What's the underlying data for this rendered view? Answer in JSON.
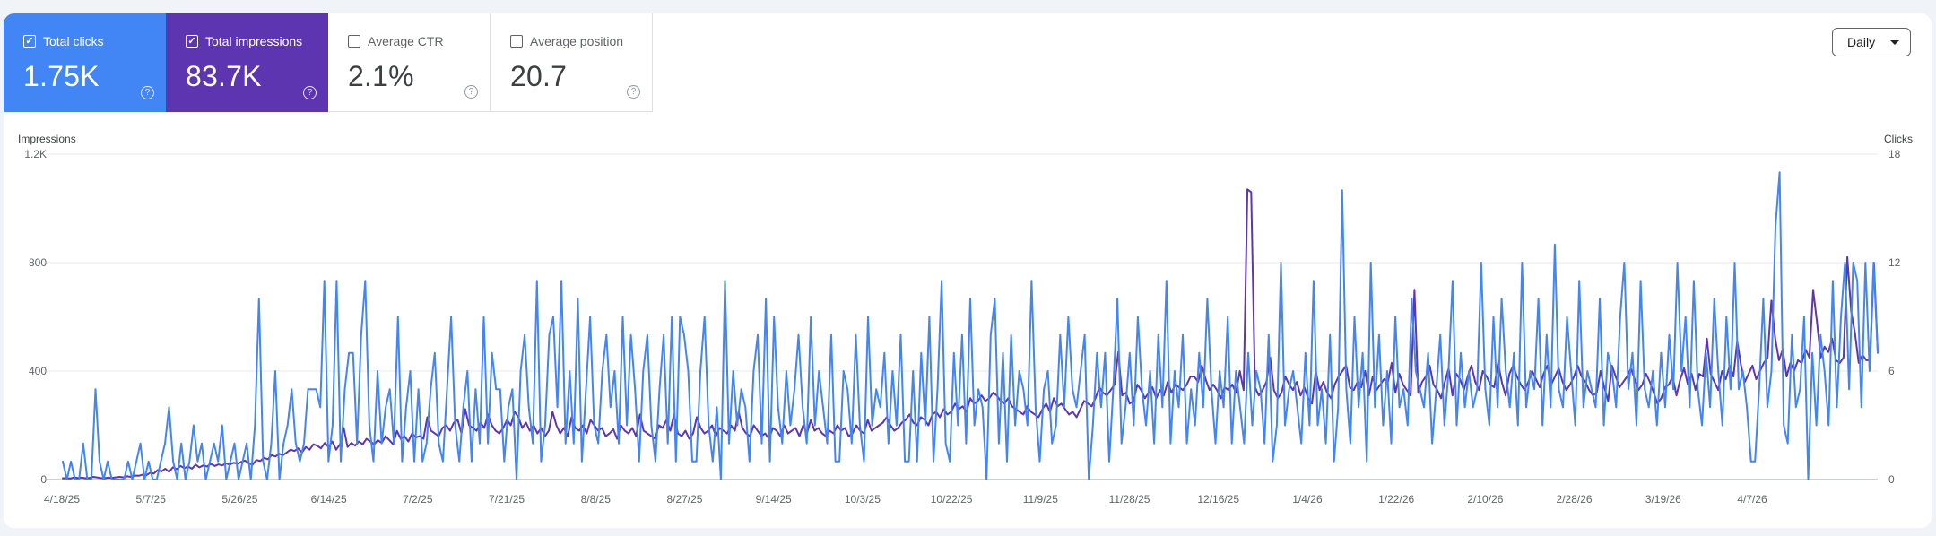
{
  "metrics": [
    {
      "label": "Total clicks",
      "value": "1.75K",
      "checked": true,
      "color": "#4285f4"
    },
    {
      "label": "Total impressions",
      "value": "83.7K",
      "checked": true,
      "color": "#5e35b1"
    },
    {
      "label": "Average CTR",
      "value": "2.1%",
      "checked": false
    },
    {
      "label": "Average position",
      "value": "20.7",
      "checked": false
    }
  ],
  "granularity": {
    "label": "Daily"
  },
  "chart_data": {
    "type": "line",
    "left_axis": {
      "title": "Impressions",
      "ticks": [
        "0",
        "400",
        "800",
        "1.2K"
      ],
      "ylim": [
        0,
        1200
      ]
    },
    "right_axis": {
      "title": "Clicks",
      "ticks": [
        "0",
        "6",
        "12",
        "18"
      ],
      "ylim": [
        0,
        18
      ]
    },
    "x_ticks": [
      "4/18/25",
      "5/7/25",
      "5/26/25",
      "6/14/25",
      "7/2/25",
      "7/21/25",
      "8/8/25",
      "8/27/25",
      "9/14/25",
      "10/3/25",
      "10/22/25",
      "11/9/25",
      "11/28/25",
      "12/16/25",
      "1/4/26",
      "1/22/26",
      "2/10/26",
      "2/28/26",
      "3/19/26",
      "4/7/26"
    ],
    "grid": true,
    "series": [
      {
        "name": "Clicks",
        "axis": "right",
        "color": "#4285f4",
        "values": [
          1,
          0,
          1,
          0,
          0,
          2,
          0,
          0,
          5,
          1,
          0,
          1,
          0,
          0,
          0,
          0,
          1,
          0,
          1,
          2,
          0,
          1,
          0,
          0,
          1,
          2,
          4,
          1,
          0,
          2,
          0,
          1,
          3,
          1,
          2,
          0,
          1,
          2,
          1,
          3,
          0,
          1,
          2,
          0,
          1,
          2,
          0,
          3,
          10,
          1,
          0,
          2,
          6,
          0,
          2,
          3,
          5,
          2,
          1,
          2,
          5,
          5,
          5,
          4,
          11,
          1,
          3,
          11,
          1,
          5,
          7,
          7,
          2,
          8,
          11,
          3,
          1,
          6,
          2,
          4,
          5,
          2,
          9,
          1,
          4,
          6,
          1,
          5,
          1,
          2,
          5,
          7,
          2,
          1,
          5,
          9,
          3,
          1,
          4,
          6,
          1,
          5,
          2,
          9,
          2,
          7,
          5,
          5,
          1,
          4,
          5,
          0,
          6,
          8,
          4,
          2,
          11,
          1,
          3,
          8,
          9,
          4,
          11,
          2,
          6,
          2,
          10,
          1,
          5,
          9,
          3,
          2,
          6,
          8,
          4,
          6,
          2,
          9,
          3,
          8,
          5,
          1,
          6,
          8,
          3,
          1,
          5,
          8,
          2,
          9,
          1,
          9,
          8,
          6,
          1,
          1,
          6,
          9,
          3,
          1,
          4,
          0,
          11,
          2,
          6,
          3,
          5,
          4,
          1,
          6,
          8,
          2,
          10,
          1,
          9,
          4,
          2,
          6,
          3,
          5,
          8,
          4,
          2,
          9,
          3,
          6,
          4,
          2,
          8,
          1,
          1,
          6,
          5,
          2,
          8,
          3,
          1,
          9,
          3,
          5,
          4,
          7,
          2,
          6,
          3,
          8,
          1,
          1,
          6,
          1,
          7,
          3,
          9,
          1,
          5,
          11,
          2,
          1,
          7,
          3,
          8,
          2,
          10,
          3,
          5,
          4,
          0,
          8,
          10,
          2,
          7,
          1,
          8,
          3,
          6,
          5,
          3,
          11,
          4,
          1,
          5,
          6,
          2,
          3,
          8,
          4,
          9,
          5,
          4,
          6,
          8,
          0,
          3,
          7,
          4,
          7,
          1,
          5,
          10,
          2,
          4,
          7,
          3,
          9,
          5,
          3,
          6,
          2,
          8,
          4,
          11,
          2,
          6,
          4,
          8,
          2,
          5,
          3,
          7,
          4,
          10,
          5,
          2,
          6,
          4,
          9,
          2,
          6,
          4,
          2,
          7,
          3,
          6,
          5,
          2,
          8,
          1,
          3,
          12,
          3,
          5,
          6,
          4,
          2,
          7,
          3,
          11,
          3,
          5,
          2,
          8,
          1,
          4,
          16,
          5,
          2,
          9,
          4,
          7,
          1,
          12,
          4,
          8,
          3,
          6,
          2,
          9,
          4,
          5,
          3,
          10,
          6,
          5,
          4,
          7,
          2,
          5,
          8,
          3,
          6,
          11,
          3,
          7,
          4,
          6,
          4,
          5,
          12,
          5,
          3,
          9,
          4,
          10,
          6,
          4,
          7,
          3,
          12,
          4,
          6,
          5,
          10,
          3,
          8,
          4,
          13,
          5,
          4,
          9,
          6,
          3,
          11,
          4,
          6,
          5,
          4,
          10,
          3,
          7,
          6,
          4,
          9,
          12,
          5,
          7,
          3,
          11,
          5,
          4,
          6,
          3,
          7,
          4,
          8,
          5,
          12,
          6,
          9,
          4,
          11,
          5,
          3,
          7,
          4,
          10,
          6,
          3,
          9,
          5,
          12,
          5,
          6,
          4,
          1,
          1,
          5,
          10,
          4,
          6,
          14,
          17,
          3,
          2,
          8,
          4,
          5,
          9,
          0,
          7,
          3,
          8,
          6,
          3,
          11,
          4,
          9,
          12,
          5,
          12,
          11,
          4,
          12,
          6,
          12,
          7
        ]
      },
      {
        "name": "Impressions",
        "axis": "left",
        "color": "#5e35b1",
        "values": [
          5,
          5,
          4,
          8,
          6,
          7,
          5,
          6,
          10,
          8,
          6,
          5,
          7,
          6,
          8,
          10,
          8,
          12,
          10,
          15,
          14,
          18,
          16,
          25,
          22,
          35,
          30,
          40,
          28,
          45,
          38,
          50,
          42,
          48,
          40,
          55,
          45,
          52,
          48,
          58,
          50,
          56,
          52,
          60,
          55,
          62,
          58,
          65,
          70,
          60,
          55,
          72,
          68,
          80,
          75,
          90,
          85,
          95,
          90,
          100,
          110,
          105,
          115,
          100,
          120,
          110,
          130,
          125,
          115,
          135,
          120,
          140,
          110,
          130,
          190,
          120,
          135,
          125,
          140,
          130,
          150,
          140,
          130,
          145,
          135,
          160,
          145,
          130,
          180,
          150,
          160,
          140,
          170,
          155,
          160,
          150,
          230,
          180,
          170,
          160,
          190,
          200,
          180,
          210,
          220,
          170,
          260,
          200,
          190,
          180,
          210,
          190,
          240,
          200,
          180,
          170,
          190,
          220,
          200,
          250,
          230,
          190,
          210,
          180,
          200,
          170,
          190,
          160,
          180,
          250,
          200,
          170,
          190,
          160,
          230,
          190,
          180,
          200,
          170,
          220,
          200,
          180,
          190,
          160,
          170,
          185,
          150,
          200,
          180,
          170,
          190,
          160,
          240,
          180,
          170,
          160,
          150,
          200,
          190,
          220,
          180,
          240,
          170,
          160,
          180,
          150,
          170,
          230,
          190,
          170,
          180,
          200,
          160,
          190,
          180,
          170,
          200,
          180,
          250,
          190,
          170,
          160,
          200,
          180,
          160,
          170,
          150,
          190,
          180,
          160,
          200,
          170,
          180,
          190,
          160,
          200,
          170,
          220,
          180,
          190,
          170,
          160,
          180,
          170,
          200,
          180,
          190,
          160,
          170,
          200,
          180,
          170,
          220,
          180,
          190,
          200,
          210,
          230,
          200,
          180,
          190,
          210,
          220,
          240,
          210,
          200,
          230,
          220,
          200,
          240,
          250,
          230,
          260,
          240,
          250,
          280,
          260,
          270,
          250,
          300,
          280,
          290,
          310,
          290,
          300,
          320,
          310,
          290,
          280,
          300,
          270,
          260,
          250,
          240,
          270,
          250,
          240,
          230,
          260,
          280,
          250,
          300,
          270,
          280,
          260,
          240,
          250,
          230,
          260,
          290,
          280,
          270,
          300,
          340,
          320,
          310,
          330,
          350,
          470,
          310,
          320,
          280,
          290,
          350,
          330,
          300,
          320,
          340,
          300,
          330,
          310,
          360,
          320,
          350,
          340,
          330,
          350,
          380,
          380,
          360,
          420,
          370,
          330,
          350,
          330,
          300,
          340,
          330,
          350,
          320,
          400,
          330,
          1070,
          1060,
          340,
          310,
          330,
          360,
          450,
          330,
          300,
          320,
          380,
          350,
          330,
          360,
          310,
          340,
          300,
          280,
          400,
          330,
          360,
          320,
          300,
          350,
          380,
          400,
          420,
          340,
          330,
          360,
          340,
          400,
          310,
          380,
          330,
          350,
          370,
          360,
          430,
          320,
          390,
          350,
          330,
          310,
          700,
          320,
          360,
          380,
          420,
          350,
          330,
          300,
          360,
          410,
          310,
          390,
          370,
          330,
          380,
          420,
          360,
          330,
          400,
          380,
          350,
          340,
          430,
          360,
          310,
          390,
          420,
          380,
          350,
          330,
          360,
          400,
          370,
          340,
          390,
          420,
          350,
          380,
          410,
          360,
          330,
          350,
          380,
          420,
          380,
          360,
          330,
          310,
          320,
          400,
          340,
          290,
          420,
          380,
          340,
          360,
          380,
          410,
          370,
          330,
          350,
          390,
          360,
          320,
          280,
          300,
          340,
          350,
          380,
          310,
          370,
          410,
          350,
          390,
          330,
          390,
          380,
          520,
          390,
          360,
          330,
          400,
          370,
          420,
          380,
          510,
          420,
          360,
          390,
          420,
          370,
          400,
          430,
          450,
          660,
          520,
          440,
          480,
          380,
          430,
          400,
          440,
          430,
          480,
          450,
          700,
          580,
          450,
          490,
          470,
          520,
          440,
          430,
          450,
          820,
          620,
          540,
          430,
          460,
          440,
          440,
          800,
          470
        ]
      }
    ]
  }
}
